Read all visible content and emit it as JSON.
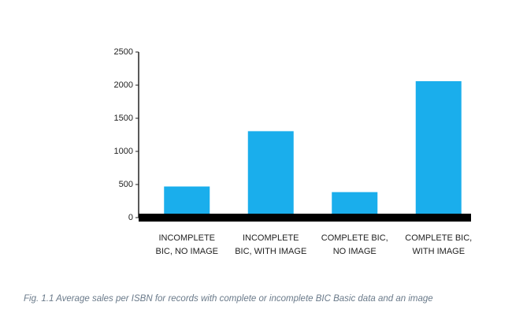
{
  "chart_data": {
    "type": "bar",
    "categories": [
      "INCOMPLETE\nBIC, NO IMAGE",
      "INCOMPLETE\nBIC, WITH IMAGE",
      "COMPLETE BIC,\nNO IMAGE",
      "COMPLETE BIC,\nWITH IMAGE"
    ],
    "values": [
      470,
      1305,
      385,
      2060
    ],
    "color": "#1aaeec",
    "ylim": [
      0,
      2500
    ],
    "yticks": [
      0,
      500,
      1000,
      1500,
      2000,
      2500
    ],
    "caption": "Fig. 1.1 Average sales per ISBN for records with complete or incomplete BIC Basic data and an image"
  }
}
